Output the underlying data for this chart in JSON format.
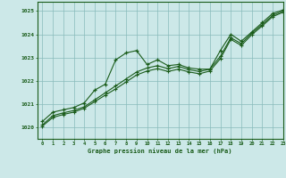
{
  "xlabel": "Graphe pression niveau de la mer (hPa)",
  "background_color": "#cce8e8",
  "line_color": "#1a5c1a",
  "grid_color": "#aacccc",
  "xlim": [
    -0.5,
    23
  ],
  "ylim": [
    1019.5,
    1025.4
  ],
  "yticks": [
    1020,
    1021,
    1022,
    1023,
    1024,
    1025
  ],
  "xticks": [
    0,
    1,
    2,
    3,
    4,
    5,
    6,
    7,
    8,
    9,
    10,
    11,
    12,
    13,
    14,
    15,
    16,
    17,
    18,
    19,
    20,
    21,
    22,
    23
  ],
  "series1_x": [
    0,
    1,
    2,
    3,
    4,
    5,
    6,
    7,
    8,
    9,
    10,
    11,
    12,
    13,
    14,
    15,
    16,
    17,
    18,
    19,
    20,
    21,
    22,
    23
  ],
  "series1_y": [
    1020.25,
    1020.65,
    1020.75,
    1020.85,
    1021.05,
    1021.6,
    1021.85,
    1022.9,
    1023.2,
    1023.3,
    1022.7,
    1022.9,
    1022.65,
    1022.7,
    1022.55,
    1022.5,
    1022.5,
    1023.3,
    1024.0,
    1023.7,
    1024.1,
    1024.5,
    1024.9,
    1025.05
  ],
  "series2_x": [
    0,
    1,
    2,
    3,
    4,
    5,
    6,
    7,
    8,
    9,
    10,
    11,
    12,
    13,
    14,
    15,
    16,
    17,
    18,
    19,
    20,
    21,
    22,
    23
  ],
  "series2_y": [
    1020.1,
    1020.5,
    1020.62,
    1020.72,
    1020.88,
    1021.18,
    1021.48,
    1021.78,
    1022.08,
    1022.38,
    1022.55,
    1022.65,
    1022.52,
    1022.62,
    1022.48,
    1022.4,
    1022.5,
    1023.05,
    1023.85,
    1023.6,
    1024.05,
    1024.42,
    1024.82,
    1025.0
  ],
  "series3_x": [
    0,
    1,
    2,
    3,
    4,
    5,
    6,
    7,
    8,
    9,
    10,
    11,
    12,
    13,
    14,
    15,
    16,
    17,
    18,
    19,
    20,
    21,
    22,
    23
  ],
  "series3_y": [
    1020.05,
    1020.42,
    1020.55,
    1020.65,
    1020.82,
    1021.1,
    1021.38,
    1021.65,
    1021.95,
    1022.25,
    1022.42,
    1022.52,
    1022.4,
    1022.5,
    1022.38,
    1022.3,
    1022.42,
    1022.95,
    1023.78,
    1023.52,
    1023.98,
    1024.36,
    1024.76,
    1024.95
  ]
}
